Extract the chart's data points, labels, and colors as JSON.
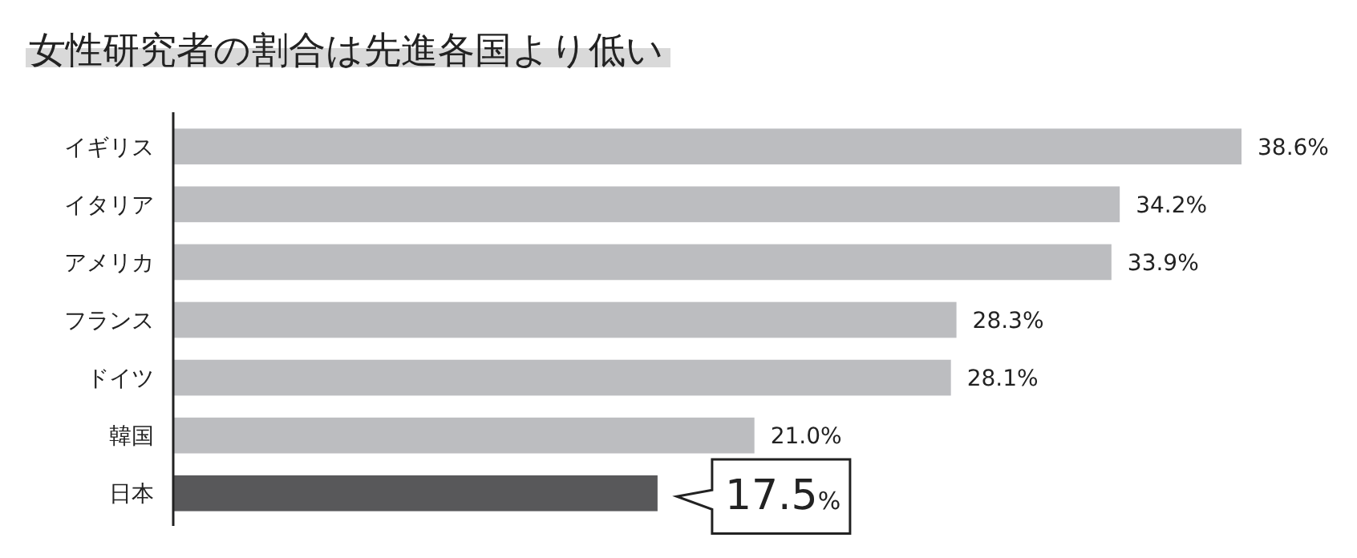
{
  "chart_data": {
    "type": "bar",
    "orientation": "horizontal",
    "title": "女性研究者の割合は先進各国より低い",
    "categories": [
      "イギリス",
      "イタリア",
      "アメリカ",
      "フランス",
      "ドイツ",
      "韓国",
      "日本"
    ],
    "values": [
      38.6,
      34.2,
      33.9,
      28.3,
      28.1,
      21.0,
      17.5
    ],
    "colors": [
      "#bcbdc0",
      "#bcbdc0",
      "#bcbdc0",
      "#bcbdc0",
      "#bcbdc0",
      "#bcbdc0",
      "#58585a"
    ],
    "value_labels": [
      "38.6%",
      "34.2%",
      "33.9%",
      "28.3%",
      "28.1%",
      "21.0%",
      "17.5%"
    ]
  }
}
